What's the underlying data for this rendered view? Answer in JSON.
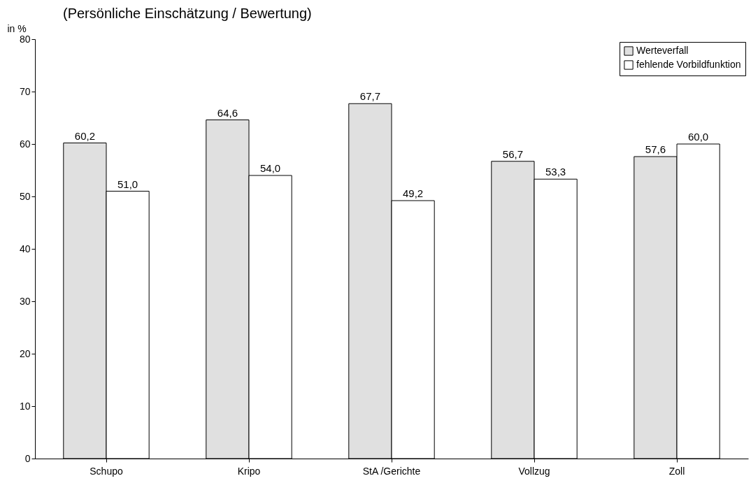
{
  "chart_data": {
    "type": "bar",
    "title": "(Persönliche Einschätzung / Bewertung)",
    "ylabel": "in %",
    "categories": [
      "Schupo",
      "Kripo",
      "StA /Gerichte",
      "Vollzug",
      "Zoll"
    ],
    "series": [
      {
        "name": "Werteverfall",
        "color": "#e0e0e0",
        "values": [
          60.2,
          64.6,
          67.7,
          56.7,
          57.6
        ],
        "value_labels": [
          "60,2",
          "64,6",
          "67,7",
          "56,7",
          "57,6"
        ]
      },
      {
        "name": "fehlende Vorbildfunktion",
        "color": "#ffffff",
        "values": [
          51.0,
          54.0,
          49.2,
          53.3,
          60.0
        ],
        "value_labels": [
          "51,0",
          "54,0",
          "49,2",
          "53,3",
          "60,0"
        ]
      }
    ],
    "ylim": [
      0,
      80
    ],
    "yticks": [
      0,
      10,
      20,
      30,
      40,
      50,
      60,
      70,
      80
    ],
    "legend": "top right",
    "grid": false
  }
}
